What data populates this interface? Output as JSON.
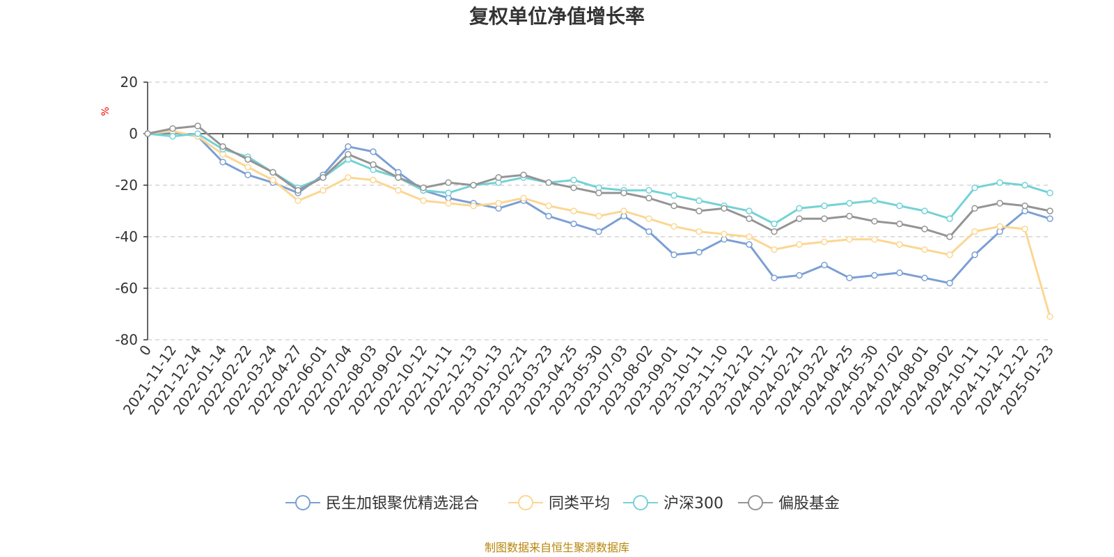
{
  "colors": {
    "axis": "#333333",
    "grid": "#cccccc",
    "ylabel": "#ff0000",
    "source": "#b8860b"
  },
  "chart_data": {
    "type": "line",
    "title": "复权单位净值增长率",
    "ylabel": "%",
    "xlabel": "",
    "ylim": [
      -80,
      20
    ],
    "yticks": [
      20,
      0,
      -20,
      -40,
      -60,
      -80
    ],
    "grid": true,
    "legend_position": "bottom",
    "x": [
      "0",
      "2021-11-12",
      "2021-12-14",
      "2022-01-14",
      "2022-02-22",
      "2022-03-24",
      "2022-04-27",
      "2022-06-01",
      "2022-07-04",
      "2022-08-03",
      "2022-09-02",
      "2022-10-12",
      "2022-11-11",
      "2022-12-13",
      "2023-01-13",
      "2023-02-21",
      "2023-03-23",
      "2023-04-25",
      "2023-05-30",
      "2023-07-03",
      "2023-08-02",
      "2023-09-01",
      "2023-10-11",
      "2023-11-10",
      "2023-12-12",
      "2024-01-12",
      "2024-02-21",
      "2024-03-22",
      "2024-04-25",
      "2024-05-30",
      "2024-07-02",
      "2024-08-01",
      "2024-09-02",
      "2024-10-11",
      "2024-11-12",
      "2024-12-12",
      "2025-01-23"
    ],
    "series": [
      {
        "name": "民生加银聚优精选混合",
        "color": "#7b9fd4",
        "values": [
          0,
          0.5,
          -1,
          -11,
          -16,
          -19,
          -23,
          -16,
          -5,
          -7,
          -15,
          -22,
          -25,
          -27,
          -29,
          -26,
          -32,
          -35,
          -38,
          -32,
          -38,
          -47,
          -46,
          -41,
          -43,
          -56,
          -55,
          -51,
          -56,
          -55,
          -54,
          -56,
          -58,
          -47,
          -38,
          -30,
          -33
        ]
      },
      {
        "name": "同类平均",
        "color": "#fcd692",
        "values": [
          0,
          1,
          -1,
          -8,
          -13,
          -18,
          -26,
          -22,
          -17,
          -18,
          -22,
          -26,
          -27,
          -28,
          -27,
          -25,
          -28,
          -30,
          -32,
          -30,
          -33,
          -36,
          -38,
          -39,
          -40,
          -45,
          -43,
          -42,
          -41,
          -41,
          -43,
          -45,
          -47,
          -38,
          -36,
          -37,
          -71
        ]
      },
      {
        "name": "沪深300",
        "color": "#73d2d6",
        "values": [
          0,
          -1,
          0,
          -6,
          -9,
          -15,
          -21,
          -17,
          -10,
          -14,
          -17,
          -22,
          -23,
          -20,
          -19,
          -17,
          -19,
          -18,
          -21,
          -22,
          -22,
          -24,
          -26,
          -28,
          -30,
          -35,
          -29,
          -28,
          -27,
          -26,
          -28,
          -30,
          -33,
          -21,
          -19,
          -20,
          -23
        ]
      },
      {
        "name": "偏股基金",
        "color": "#949494",
        "values": [
          0,
          2,
          3,
          -5,
          -10,
          -15,
          -22,
          -17,
          -8,
          -12,
          -17,
          -21,
          -19,
          -20,
          -17,
          -16,
          -19,
          -21,
          -23,
          -23,
          -25,
          -28,
          -30,
          -29,
          -33,
          -38,
          -33,
          -33,
          -32,
          -34,
          -35,
          -37,
          -40,
          -29,
          -27,
          -28,
          -30
        ]
      }
    ]
  },
  "source_note": "制图数据来自恒生聚源数据库"
}
